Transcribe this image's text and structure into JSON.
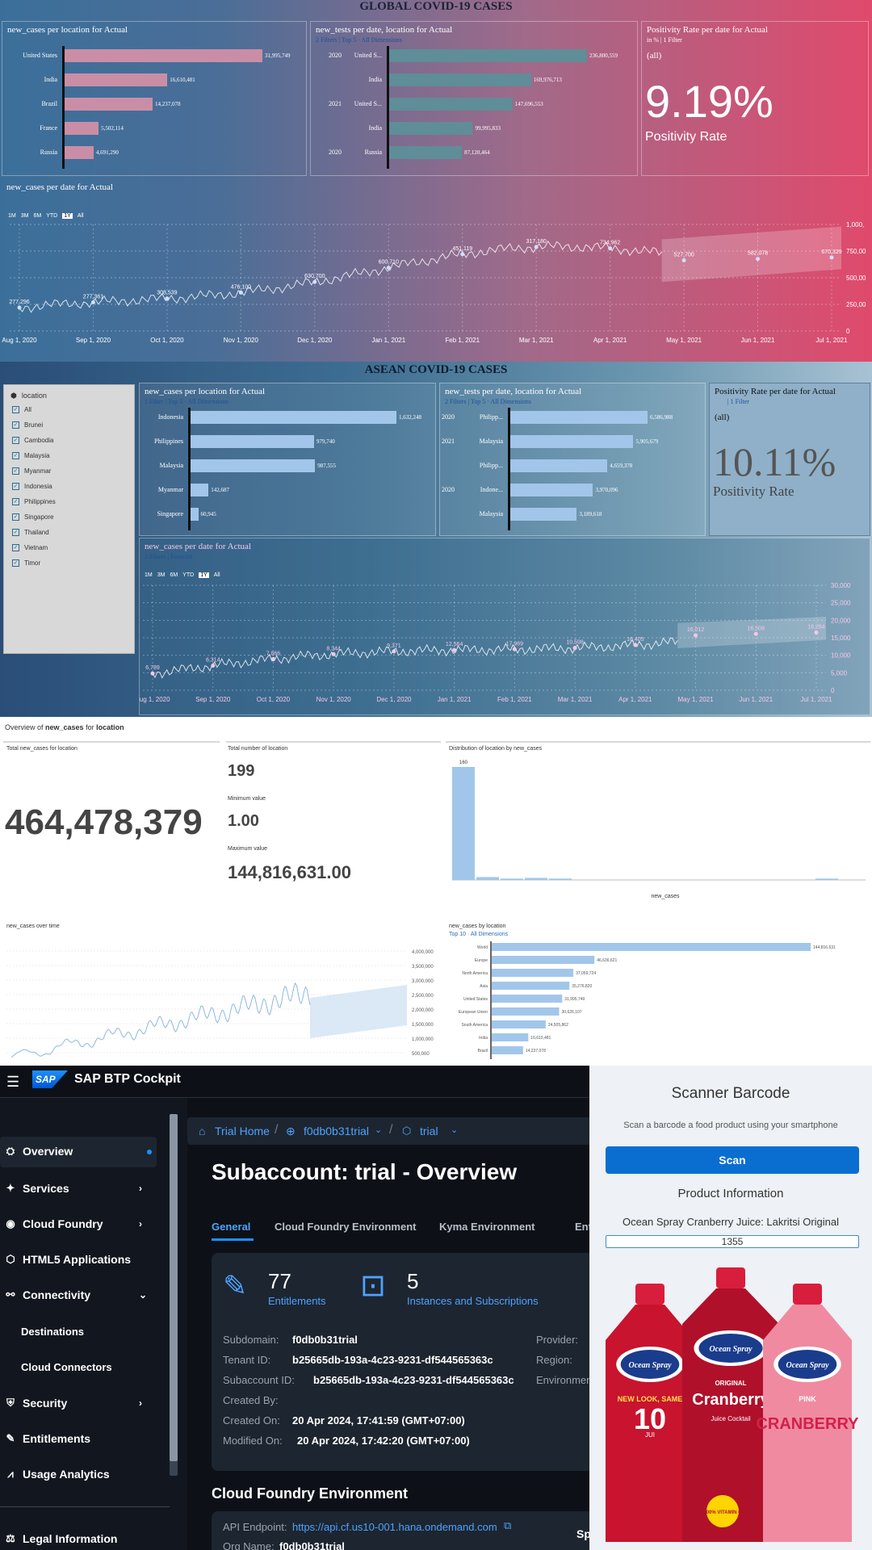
{
  "global": {
    "title": "GLOBAL COVID-19 CASES",
    "panel1": {
      "title": "new_cases per location for Actual",
      "bars": [
        {
          "label": "United States",
          "value": 31995749,
          "value_text": "31,995,749"
        },
        {
          "label": "India",
          "value": 16610481,
          "value_text": "16,610,481"
        },
        {
          "label": "Brazil",
          "value": 14237078,
          "value_text": "14,237,078"
        },
        {
          "label": "France",
          "value": 5502114,
          "value_text": "5,502,114"
        },
        {
          "label": "Russia",
          "value": 4691290,
          "value_text": "4,691,290"
        }
      ]
    },
    "panel2": {
      "title": "new_tests per date, location for Actual",
      "sub": "2 Filters | Top 5 · All Dimensions",
      "bars": [
        {
          "year": "2020",
          "label": "United S...",
          "value": 236800559,
          "value_text": "236,800,559"
        },
        {
          "year": "",
          "label": "India",
          "value": 169976713,
          "value_text": "169,976,713"
        },
        {
          "year": "2021",
          "label": "United S...",
          "value": 147696553,
          "value_text": "147,696,553"
        },
        {
          "year": "",
          "label": "India",
          "value": 99995833,
          "value_text": "99,995,833"
        },
        {
          "year": "2020",
          "label": "Russia",
          "value": 87120464,
          "value_text": "87,120,464"
        }
      ]
    },
    "panel3": {
      "title": "Positivity Rate per date for Actual",
      "sub": "in % | 1 Filter",
      "scope": "(all)",
      "value": "9.19%",
      "label": "Positivity Rate"
    },
    "line": {
      "title": "new_cases per date for Actual",
      "ranges": [
        "1M",
        "3M",
        "6M",
        "YTD",
        "1Y",
        "All"
      ],
      "selected_range": "1Y",
      "x_labels": [
        "Aug 1, 2020",
        "Sep 1, 2020",
        "Oct 1, 2020",
        "Nov 1, 2020",
        "Dec 1, 2020",
        "Jan 1, 2021",
        "Feb 1, 2021",
        "Mar 1, 2021",
        "Apr 1, 2021",
        "May 1, 2021",
        "Jun 1, 2021",
        "Jul 1, 2021"
      ],
      "y_labels": [
        "1,000,",
        "750,00",
        "500,00",
        "250,00",
        "0"
      ],
      "point_labels": [
        "277,296",
        "277,361",
        "308,539",
        "476,100",
        "630,700",
        "600,710",
        "451,119",
        "317,180",
        "734,962",
        "527,700",
        "582,078",
        "670,329"
      ]
    }
  },
  "asean": {
    "title": "ASEAN COVID-19 CASES",
    "filter": {
      "header": "location",
      "items": [
        "All",
        "Brunei",
        "Cambodia",
        "Malaysia",
        "Myanmar",
        "Indonesia",
        "Philippines",
        "Singapore",
        "Thailand",
        "Vietnam",
        "Timor"
      ]
    },
    "panel1": {
      "title": "new_cases per location for Actual",
      "sub": "1 Filter | Top 5 · All Dimensions",
      "bars": [
        {
          "label": "Indonesia",
          "value": 1632248,
          "value_text": "1,632,248"
        },
        {
          "label": "Philippines",
          "value": 979740,
          "value_text": "979,740"
        },
        {
          "label": "Malaysia",
          "value": 987555,
          "value_text": "987,555"
        },
        {
          "label": "Myanmar",
          "value": 142687,
          "value_text": "142,687"
        },
        {
          "label": "Singapore",
          "value": 60945,
          "value_text": "60,945"
        }
      ]
    },
    "panel2": {
      "title": "new_tests per date, location for Actual",
      "sub": "2 Filters | Top 5 · All Dimensions",
      "bars": [
        {
          "year": "2020",
          "label": "Philipp...",
          "value": 6586988,
          "value_text": "6,586,988"
        },
        {
          "year": "2021",
          "label": "Malaysia",
          "value": 5905679,
          "value_text": "5,905,679"
        },
        {
          "year": "",
          "label": "Philipp...",
          "value": 4659378,
          "value_text": "4,659,378"
        },
        {
          "year": "2020",
          "label": "Indone...",
          "value": 3970096,
          "value_text": "3,970,096"
        },
        {
          "year": "",
          "label": "Malaysia",
          "value": 3189618,
          "value_text": "3,189,618"
        }
      ]
    },
    "panel3": {
      "title": "Positivity Rate per date for Actual",
      "sub": "| 1 Filter",
      "scope": "(all)",
      "value": "10.11%",
      "label": "Positivity Rate"
    },
    "line": {
      "title": "new_cases per date for Actual",
      "sub": "2 Filters | Forecast",
      "ranges": [
        "1M",
        "3M",
        "6M",
        "YTD",
        "1Y",
        "All"
      ],
      "selected_range": "1Y",
      "x_labels": [
        "Aug 1, 2020",
        "Sep 1, 2020",
        "Oct 1, 2020",
        "Nov 1, 2020",
        "Dec 1, 2020",
        "Jan 1, 2021",
        "Feb 1, 2021",
        "Mar 1, 2021",
        "Apr 1, 2021",
        "May 1, 2021",
        "Jun 1, 2021",
        "Jul 1, 2021"
      ],
      "y_labels": [
        "30,000",
        "25,000",
        "20,000",
        "15,000",
        "10,000",
        "5,000",
        "0"
      ],
      "point_labels": [
        "6,789",
        "6,314",
        "7,866",
        "8,344",
        "9,371",
        "12,564",
        "17,969",
        "10,598",
        "16,405",
        "16,012",
        "16,508",
        "18,284"
      ]
    }
  },
  "overview": {
    "heading_prefix": "Overview of",
    "heading_measure": "new_cases",
    "heading_mid": "for",
    "heading_dim": "location",
    "total_label": "Total new_cases for location",
    "total_value": "464,478,379",
    "count_label": "Total number of location",
    "count_value": "199",
    "min_label": "Minimum value",
    "min_value": "1.00",
    "max_label": "Maximum value",
    "max_value": "144,816,631.00",
    "dist_label": "Distribution of location by new_cases",
    "dist_top_value": "160",
    "dist_xlabel": "new_cases",
    "time_label": "new_cases over time",
    "bylocation_label": "new_cases by location",
    "bylocation_sub": "Top 10 · All Dimensions",
    "bylocation_bars": [
      {
        "label": "World",
        "value": 144816631,
        "value_text": "144,816,631"
      },
      {
        "label": "Europe",
        "value": 46636621,
        "value_text": "46,636,621"
      },
      {
        "label": "North America",
        "value": 37059724,
        "value_text": "37,059,724"
      },
      {
        "label": "Asia",
        "value": 35276820,
        "value_text": "35,276,820"
      },
      {
        "label": "United States",
        "value": 31995749,
        "value_text": "31,995,749"
      },
      {
        "label": "European Union",
        "value": 30626107,
        "value_text": "30,626,107"
      },
      {
        "label": "South America",
        "value": 24505862,
        "value_text": "24,505,862"
      },
      {
        "label": "India",
        "value": 16610481,
        "value_text": "16,610,481"
      },
      {
        "label": "Brazil",
        "value": 14237078,
        "value_text": "14,237,078"
      }
    ],
    "time_y_labels": [
      "4,000,000",
      "3,500,000",
      "3,000,000",
      "2,500,000",
      "2,000,000",
      "1,500,000",
      "1,000,000",
      "500,000"
    ]
  },
  "sap": {
    "app_title": "SAP BTP Cockpit",
    "logo": "SAP",
    "nav": [
      {
        "label": "Overview",
        "icon": "hierarchy-icon",
        "glyph": "⛭"
      },
      {
        "label": "Services",
        "icon": "services-icon",
        "glyph": "✦"
      },
      {
        "label": "Cloud Foundry",
        "icon": "cloud-foundry-icon",
        "glyph": "◉"
      },
      {
        "label": "HTML5 Applications",
        "icon": "html5-icon",
        "glyph": "⬡"
      },
      {
        "label": "Connectivity",
        "icon": "connectivity-icon",
        "glyph": "⚯"
      },
      {
        "label": "Destinations",
        "icon": "",
        "glyph": ""
      },
      {
        "label": "Cloud Connectors",
        "icon": "",
        "glyph": ""
      },
      {
        "label": "Security",
        "icon": "shield-icon",
        "glyph": "⛨"
      },
      {
        "label": "Entitlements",
        "icon": "entitlements-icon",
        "glyph": "✎"
      },
      {
        "label": "Usage Analytics",
        "icon": "analytics-icon",
        "glyph": "⩘"
      }
    ],
    "legal": "Legal Information",
    "breadcrumb": [
      "Trial Home",
      "f0db0b31trial",
      "trial"
    ],
    "page_title": "Subaccount: trial - Overview",
    "tabs": [
      "General",
      "Cloud Foundry Environment",
      "Kyma Environment",
      "Entitle"
    ],
    "stats": [
      {
        "value": "77",
        "label": "Entitlements"
      },
      {
        "value": "5",
        "label": "Instances and Subscriptions"
      }
    ],
    "details": [
      {
        "label": "Subdomain:",
        "value": "f0db0b31trial"
      },
      {
        "label": "Tenant ID:",
        "value": "b25665db-193a-4c23-9231-df544565363c"
      },
      {
        "label": "Subaccount ID:",
        "value": "b25665db-193a-4c23-9231-df544565363c"
      },
      {
        "label": "Created By:",
        "value": ""
      },
      {
        "label": "Created On:",
        "value": "20 Apr 2024, 17:41:59 (GMT+07:00)"
      },
      {
        "label": "Modified On:",
        "value": "20 Apr 2024, 17:42:20 (GMT+07:00)"
      }
    ],
    "details_right": [
      "Provider:",
      "Region:",
      "Environmen"
    ],
    "cf_heading": "Cloud Foundry Environment",
    "api_label": "API Endpoint:",
    "api_value": "https://api.cf.us10-001.hana.ondemand.com",
    "org_label": "Org Name:",
    "org_value": "f0db0b31trial",
    "cut_text": "Sp",
    "accent": "#1b90ff"
  },
  "scanner": {
    "title": "Scanner Barcode",
    "subtitle": "Scan a barcode a food product using your smartphone",
    "button": "Scan",
    "section": "Product Information",
    "product": "Ocean Spray Cranberry Juice: Lakritsi Original",
    "barcode": "1355",
    "brand": "Ocean Spray",
    "bottles": [
      {
        "name": "bottle-left",
        "line1": "NEW LOOK, SAME",
        "line2": "10",
        "line3": "JUI"
      },
      {
        "name": "bottle-center",
        "line1": "ORIGINAL",
        "line2": "Cranberry",
        "line3": "Juice Cocktail"
      },
      {
        "name": "bottle-right",
        "line1": "PINK",
        "line2": "CRANBERRY",
        "line3": ""
      }
    ],
    "badge": "100% VITAMIN C",
    "button_color": "#0a6ed1"
  }
}
